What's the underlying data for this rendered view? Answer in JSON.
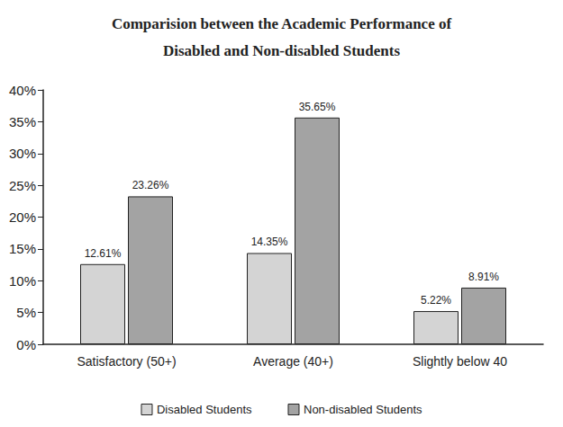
{
  "chart_data": {
    "type": "bar",
    "title": "Comparision between the Academic Performance of\nDisabled and Non-disabled Students",
    "categories": [
      "Satisfactory (50+)",
      "Average (40+)",
      "Slightly below 40"
    ],
    "series": [
      {
        "name": "Disabled Students",
        "color": "#d4d4d4",
        "values": [
          12.61,
          14.35,
          5.22
        ],
        "value_labels": [
          "12.61%",
          "14.35%",
          "5.22%"
        ]
      },
      {
        "name": "Non-disabled Students",
        "color": "#a3a3a3",
        "values": [
          23.26,
          35.65,
          8.91
        ],
        "value_labels": [
          "23.26%",
          "35.65%",
          "8.91%"
        ]
      }
    ],
    "ylim": [
      0,
      40
    ],
    "yticks": [
      {
        "value": 0,
        "label": "0%"
      },
      {
        "value": 5,
        "label": "5%"
      },
      {
        "value": 10,
        "label": "10%"
      },
      {
        "value": 15,
        "label": "15%"
      },
      {
        "value": 20,
        "label": "20%"
      },
      {
        "value": 25,
        "label": "25%"
      },
      {
        "value": 30,
        "label": "30%"
      },
      {
        "value": 35,
        "label": "35%"
      },
      {
        "value": 40,
        "label": "40%"
      }
    ],
    "grid": false,
    "legend": "bottom",
    "data_labels": true
  }
}
